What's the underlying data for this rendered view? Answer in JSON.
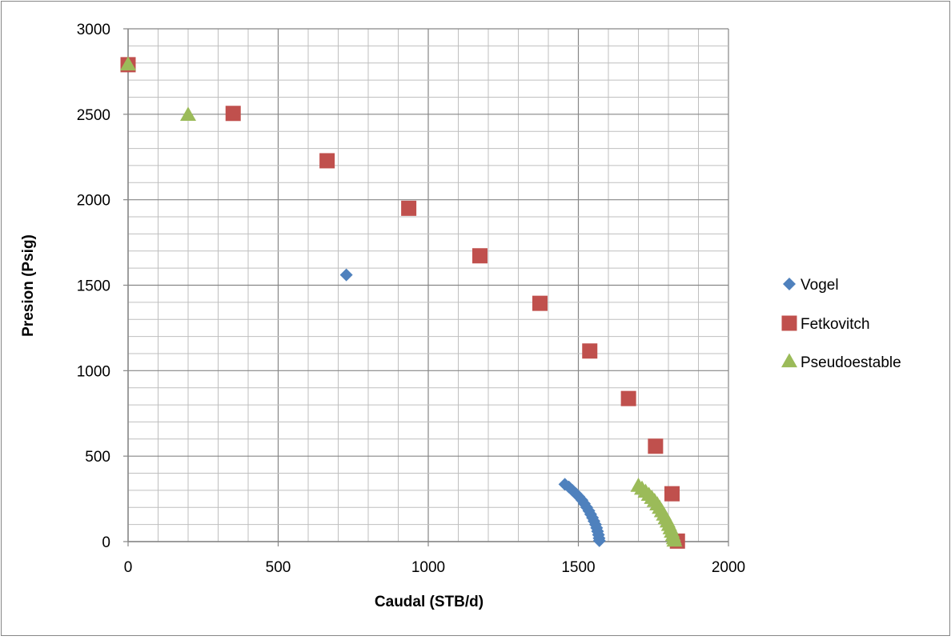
{
  "chart_data": {
    "type": "scatter",
    "title": "",
    "xlabel": "Caudal (STB/d)",
    "ylabel": "Presion (Psig)",
    "xlim": [
      0,
      2000
    ],
    "ylim": [
      0,
      3000
    ],
    "x_ticks": [
      "0",
      "500",
      "1000",
      "1500",
      "2000"
    ],
    "y_ticks": [
      "0",
      "500",
      "1000",
      "1500",
      "2000",
      "2500",
      "3000"
    ],
    "grid": true,
    "legend_position": "right",
    "series": [
      {
        "name": "Vogel",
        "marker": "diamond",
        "color": "#4f81bd",
        "points": [
          [
            727,
            1560
          ],
          [
            1455,
            335
          ],
          [
            1468,
            320
          ],
          [
            1480,
            300
          ],
          [
            1492,
            280
          ],
          [
            1502,
            262
          ],
          [
            1512,
            242
          ],
          [
            1520,
            222
          ],
          [
            1528,
            200
          ],
          [
            1535,
            180
          ],
          [
            1541,
            160
          ],
          [
            1547,
            140
          ],
          [
            1552,
            120
          ],
          [
            1557,
            100
          ],
          [
            1561,
            80
          ],
          [
            1564,
            60
          ],
          [
            1567,
            40
          ],
          [
            1569,
            20
          ],
          [
            1570,
            5
          ]
        ]
      },
      {
        "name": "Fetkovitch",
        "marker": "square",
        "color": "#c0504d",
        "points": [
          [
            0,
            2790
          ],
          [
            350,
            2505
          ],
          [
            663,
            2228
          ],
          [
            935,
            1950
          ],
          [
            1172,
            1672
          ],
          [
            1372,
            1394
          ],
          [
            1538,
            1115
          ],
          [
            1667,
            837
          ],
          [
            1757,
            558
          ],
          [
            1812,
            280
          ],
          [
            1830,
            3
          ]
        ]
      },
      {
        "name": "Pseudoestable",
        "marker": "triangle",
        "color": "#9bbb59",
        "points": [
          [
            0,
            2790
          ],
          [
            200,
            2495
          ],
          [
            1700,
            325
          ],
          [
            1712,
            308
          ],
          [
            1724,
            290
          ],
          [
            1735,
            272
          ],
          [
            1745,
            254
          ],
          [
            1754,
            236
          ],
          [
            1763,
            216
          ],
          [
            1771,
            196
          ],
          [
            1778,
            176
          ],
          [
            1785,
            156
          ],
          [
            1791,
            136
          ],
          [
            1797,
            116
          ],
          [
            1802,
            96
          ],
          [
            1807,
            76
          ],
          [
            1811,
            56
          ],
          [
            1815,
            36
          ],
          [
            1818,
            18
          ],
          [
            1820,
            4
          ]
        ]
      }
    ]
  }
}
